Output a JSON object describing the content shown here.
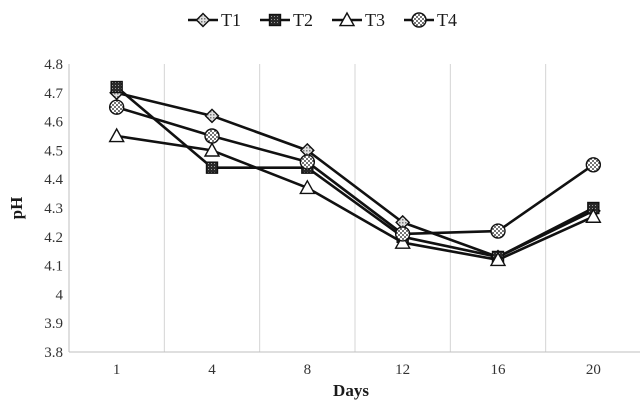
{
  "chart_data": {
    "type": "line",
    "title": "",
    "xlabel": "Days",
    "ylabel": "pH",
    "categories": [
      "1",
      "4",
      "8",
      "12",
      "16",
      "20"
    ],
    "ylim": [
      3.8,
      4.8
    ],
    "yticks": [
      "3.8",
      "3.9",
      "4",
      "4.1",
      "4.2",
      "4.3",
      "4.4",
      "4.5",
      "4.6",
      "4.7",
      "4.8"
    ],
    "grid": "vertical",
    "legend_position": "top",
    "series": [
      {
        "name": "T1",
        "marker": "diamond",
        "values": [
          4.7,
          4.62,
          4.5,
          4.25,
          4.13,
          4.29
        ]
      },
      {
        "name": "T2",
        "marker": "square",
        "values": [
          4.72,
          4.44,
          4.44,
          4.2,
          4.13,
          4.3
        ]
      },
      {
        "name": "T3",
        "marker": "triangle",
        "values": [
          4.55,
          4.5,
          4.37,
          4.18,
          4.12,
          4.27
        ]
      },
      {
        "name": "T4",
        "marker": "dotted-circle",
        "values": [
          4.65,
          4.55,
          4.46,
          4.21,
          4.22,
          4.45
        ]
      }
    ]
  }
}
